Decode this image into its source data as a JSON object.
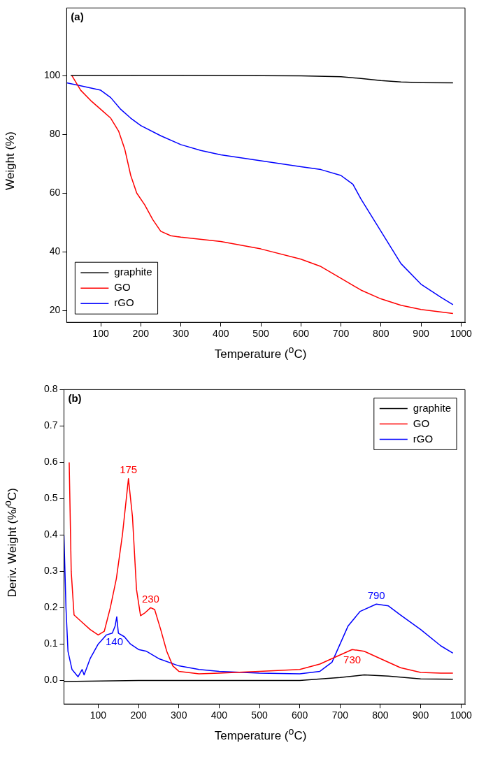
{
  "chart_data": [
    {
      "type": "line",
      "xlabel": "Temperature ($^{o}$C)",
      "ylabel": "Weight (%)",
      "xlim": [
        15,
        1010
      ],
      "ylim": [
        16,
        123
      ],
      "xticks": [
        100,
        200,
        300,
        400,
        500,
        600,
        700,
        800,
        900,
        1000
      ],
      "yticks": [
        20,
        40,
        60,
        80,
        100
      ],
      "grid": false,
      "legend": "bottom left",
      "marker": "none",
      "annotations": [
        "(a)"
      ],
      "series": [
        {
          "name": "graphite",
          "color": "#000000",
          "x": [
            25,
            200,
            400,
            600,
            700,
            750,
            800,
            850,
            900,
            980
          ],
          "values": [
            100,
            100.1,
            100,
            99.9,
            99.6,
            99,
            98.3,
            97.8,
            97.6,
            97.5
          ]
        },
        {
          "name": "GO",
          "color": "#ff0000",
          "x": [
            28,
            50,
            75,
            100,
            125,
            145,
            160,
            175,
            190,
            210,
            230,
            250,
            275,
            300,
            400,
            500,
            600,
            650,
            700,
            750,
            800,
            850,
            900,
            980
          ],
          "values": [
            100,
            95,
            91.5,
            88.5,
            85.5,
            81,
            75,
            66,
            60,
            56,
            51,
            47,
            45.5,
            45,
            43.5,
            41,
            37.5,
            35,
            31,
            27,
            24,
            21.8,
            20.4,
            19
          ]
        },
        {
          "name": "rGO",
          "color": "#0000ff",
          "x": [
            15,
            50,
            100,
            125,
            150,
            175,
            200,
            250,
            300,
            350,
            400,
            500,
            600,
            650,
            700,
            730,
            750,
            800,
            850,
            900,
            950,
            980
          ],
          "values": [
            97.5,
            96.5,
            95,
            92.5,
            88.5,
            85.5,
            83,
            79.5,
            76.5,
            74.5,
            73,
            71,
            69,
            68,
            66,
            63,
            58,
            47,
            36,
            29,
            24.5,
            22
          ]
        }
      ]
    },
    {
      "type": "line",
      "xlabel": "Temperature ($^{o}$C)",
      "ylabel": "Deriv. Weight (%/$^{o}$C)",
      "xlim": [
        15,
        1010
      ],
      "ylim": [
        -0.065,
        0.8
      ],
      "xticks": [
        100,
        200,
        300,
        400,
        500,
        600,
        700,
        800,
        900,
        1000
      ],
      "yticks": [
        {
          "value": 0,
          "label": "0.0"
        },
        0.1,
        0.2,
        0.3,
        0.4,
        0.5,
        0.6,
        0.7,
        0.8
      ],
      "grid": false,
      "legend": "top right",
      "marker": "none",
      "annotations": [
        "(b)",
        {
          "text": "175",
          "x": 175,
          "y": 0.555
        },
        {
          "text": "230",
          "x": 230,
          "y": 0.2
        },
        {
          "text": "140",
          "x": 140,
          "y": 0.13
        },
        {
          "text": "790",
          "x": 790,
          "y": 0.21
        },
        {
          "text": "730",
          "x": 730,
          "y": 0.085
        }
      ],
      "series": [
        {
          "name": "graphite",
          "color": "#000000",
          "x": [
            15,
            200,
            600,
            700,
            760,
            820,
            900,
            980
          ],
          "values": [
            -0.003,
            0,
            0,
            0.008,
            0.015,
            0.012,
            0.004,
            0.003
          ]
        },
        {
          "name": "GO",
          "color": "#ff0000",
          "x": [
            28,
            33,
            40,
            60,
            80,
            100,
            115,
            130,
            145,
            160,
            175,
            185,
            195,
            205,
            215,
            230,
            240,
            255,
            270,
            285,
            300,
            350,
            400,
            500,
            600,
            650,
            700,
            730,
            760,
            800,
            850,
            900,
            950,
            980
          ],
          "values": [
            0.6,
            0.3,
            0.18,
            0.16,
            0.14,
            0.125,
            0.135,
            0.2,
            0.28,
            0.4,
            0.555,
            0.45,
            0.25,
            0.178,
            0.185,
            0.2,
            0.195,
            0.14,
            0.08,
            0.04,
            0.025,
            0.018,
            0.02,
            0.025,
            0.03,
            0.045,
            0.07,
            0.085,
            0.08,
            0.06,
            0.035,
            0.022,
            0.02,
            0.02
          ]
        },
        {
          "name": "rGO",
          "color": "#0000ff",
          "x": [
            15,
            20,
            25,
            35,
            50,
            60,
            65,
            80,
            100,
            120,
            135,
            142,
            146,
            150,
            165,
            180,
            200,
            220,
            250,
            300,
            350,
            400,
            500,
            600,
            650,
            680,
            700,
            720,
            750,
            790,
            820,
            850,
            900,
            950,
            980
          ],
          "values": [
            0.4,
            0.2,
            0.08,
            0.03,
            0.01,
            0.03,
            0.015,
            0.06,
            0.1,
            0.125,
            0.13,
            0.15,
            0.175,
            0.13,
            0.12,
            0.1,
            0.085,
            0.08,
            0.06,
            0.04,
            0.03,
            0.025,
            0.02,
            0.018,
            0.025,
            0.05,
            0.1,
            0.15,
            0.19,
            0.21,
            0.205,
            0.18,
            0.14,
            0.095,
            0.075
          ]
        }
      ]
    }
  ]
}
